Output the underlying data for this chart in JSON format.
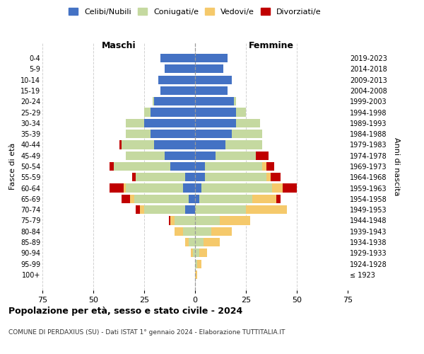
{
  "age_groups": [
    "100+",
    "95-99",
    "90-94",
    "85-89",
    "80-84",
    "75-79",
    "70-74",
    "65-69",
    "60-64",
    "55-59",
    "50-54",
    "45-49",
    "40-44",
    "35-39",
    "30-34",
    "25-29",
    "20-24",
    "15-19",
    "10-14",
    "5-9",
    "0-4"
  ],
  "birth_years": [
    "≤ 1923",
    "1924-1928",
    "1929-1933",
    "1934-1938",
    "1939-1943",
    "1944-1948",
    "1949-1953",
    "1954-1958",
    "1959-1963",
    "1964-1968",
    "1969-1973",
    "1974-1978",
    "1979-1983",
    "1984-1988",
    "1989-1993",
    "1994-1998",
    "1999-2003",
    "2004-2008",
    "2009-2013",
    "2014-2018",
    "2019-2023"
  ],
  "male": {
    "celibi": [
      0,
      0,
      0,
      0,
      0,
      0,
      5,
      3,
      6,
      5,
      12,
      15,
      20,
      22,
      25,
      22,
      20,
      17,
      18,
      15,
      17
    ],
    "coniugati": [
      0,
      0,
      1,
      3,
      6,
      10,
      20,
      27,
      28,
      24,
      28,
      19,
      16,
      12,
      9,
      3,
      1,
      0,
      0,
      0,
      0
    ],
    "vedovi": [
      0,
      0,
      1,
      2,
      4,
      2,
      2,
      2,
      1,
      0,
      0,
      0,
      0,
      0,
      0,
      0,
      0,
      0,
      0,
      0,
      0
    ],
    "divorziati": [
      0,
      0,
      0,
      0,
      0,
      1,
      2,
      4,
      7,
      2,
      2,
      0,
      1,
      0,
      0,
      0,
      0,
      0,
      0,
      0,
      0
    ]
  },
  "female": {
    "nubili": [
      0,
      0,
      0,
      0,
      0,
      0,
      0,
      2,
      3,
      5,
      5,
      10,
      15,
      18,
      20,
      20,
      19,
      16,
      18,
      14,
      16
    ],
    "coniugate": [
      0,
      1,
      2,
      4,
      8,
      12,
      25,
      26,
      35,
      30,
      28,
      20,
      18,
      15,
      12,
      5,
      1,
      0,
      0,
      0,
      0
    ],
    "vedove": [
      1,
      2,
      4,
      8,
      10,
      15,
      20,
      12,
      5,
      2,
      2,
      0,
      0,
      0,
      0,
      0,
      0,
      0,
      0,
      0,
      0
    ],
    "divorziate": [
      0,
      0,
      0,
      0,
      0,
      0,
      0,
      2,
      7,
      5,
      4,
      6,
      0,
      0,
      0,
      0,
      0,
      0,
      0,
      0,
      0
    ]
  },
  "colors": {
    "celibi": "#4472C4",
    "coniugati": "#c5d9a0",
    "vedovi": "#f5c96b",
    "divorziati": "#c00000"
  },
  "xlim": 75,
  "title": "Popolazione per età, sesso e stato civile - 2024",
  "subtitle": "COMUNE DI PERDAXIUS (SU) - Dati ISTAT 1° gennaio 2024 - Elaborazione TUTTITALIA.IT",
  "xlabel_left": "Maschi",
  "xlabel_right": "Femmine",
  "ylabel_left": "Fasce di età",
  "ylabel_right": "Anni di nascita",
  "legend_labels": [
    "Celibi/Nubili",
    "Coniugati/e",
    "Vedovi/e",
    "Divorziati/e"
  ],
  "xticks": [
    -75,
    -50,
    -25,
    0,
    25,
    50,
    75
  ],
  "xtick_labels": [
    "75",
    "50",
    "25",
    "0",
    "25",
    "50",
    "75"
  ],
  "background_color": "#ffffff",
  "grid_color": "#cccccc"
}
